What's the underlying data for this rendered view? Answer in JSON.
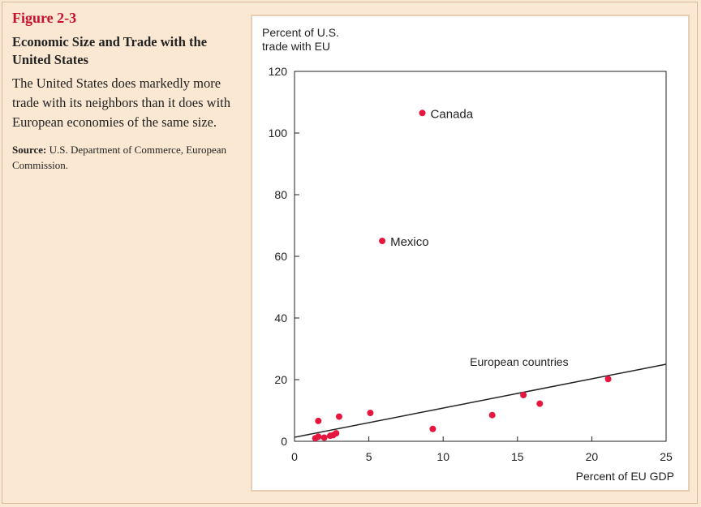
{
  "caption": {
    "figure_label": "Figure 2-3",
    "title": "Economic Size and Trade with the United States",
    "description": "The United States does markedly more trade with its neighbors than it does with European economies of the same size.",
    "source_label": "Source:",
    "source_text": "U.S. Department of Commerce, European Commission."
  },
  "chart_data": {
    "type": "scatter",
    "title": "",
    "ylabel_lines": [
      "Percent of U.S.",
      "trade with EU"
    ],
    "xlabel": "Percent of EU GDP",
    "xlim": [
      0,
      25
    ],
    "ylim": [
      0,
      120
    ],
    "xticks": [
      0,
      5,
      10,
      15,
      20,
      25
    ],
    "yticks": [
      0,
      20,
      40,
      60,
      80,
      100,
      120
    ],
    "grid": false,
    "point_color": "#e5173f",
    "points": [
      {
        "x": 8.6,
        "y": 106.5,
        "label": "Canada"
      },
      {
        "x": 5.9,
        "y": 65.0,
        "label": "Mexico"
      },
      {
        "x": 1.4,
        "y": 1.0,
        "label": ""
      },
      {
        "x": 1.6,
        "y": 1.5,
        "label": ""
      },
      {
        "x": 2.0,
        "y": 1.2,
        "label": ""
      },
      {
        "x": 2.4,
        "y": 1.8,
        "label": ""
      },
      {
        "x": 2.6,
        "y": 2.0,
        "label": ""
      },
      {
        "x": 2.8,
        "y": 2.6,
        "label": ""
      },
      {
        "x": 1.6,
        "y": 6.6,
        "label": ""
      },
      {
        "x": 3.0,
        "y": 8.0,
        "label": ""
      },
      {
        "x": 5.1,
        "y": 9.2,
        "label": ""
      },
      {
        "x": 9.3,
        "y": 4.0,
        "label": ""
      },
      {
        "x": 13.3,
        "y": 8.5,
        "label": ""
      },
      {
        "x": 15.4,
        "y": 15.0,
        "label": ""
      },
      {
        "x": 16.5,
        "y": 12.2,
        "label": ""
      },
      {
        "x": 21.1,
        "y": 20.2,
        "label": ""
      }
    ],
    "trendline": {
      "x": [
        0,
        25
      ],
      "y": [
        1.3,
        25.0
      ],
      "label": "European countries"
    }
  }
}
